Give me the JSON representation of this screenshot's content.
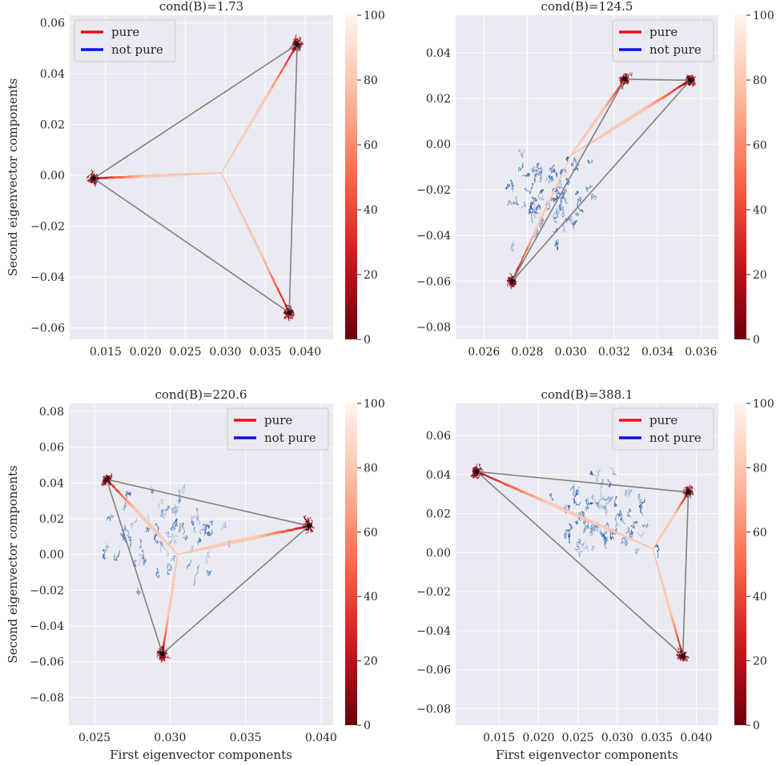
{
  "figure": {
    "legend_labels": {
      "pure": "pure",
      "not_pure": "not pure"
    },
    "colors": {
      "pure": "#ee1111",
      "not_pure": "#1010ee",
      "axes_bg": "#eaeaf2",
      "grid": "#ffffff",
      "triangle": "#808080"
    },
    "colormap": "Reds_r"
  },
  "chart_data": [
    {
      "type": "line",
      "title": "cond(B)=1.73",
      "xlabel": "",
      "ylabel": "Second eigenvector components",
      "xlim": [
        0.0105,
        0.0435
      ],
      "ylim": [
        -0.0645,
        0.063
      ],
      "xticks": [
        0.015,
        0.02,
        0.025,
        0.03,
        0.035,
        0.04
      ],
      "xtick_labels": [
        "0.015",
        "0.020",
        "0.025",
        "0.030",
        "0.035",
        "0.040"
      ],
      "yticks": [
        -0.06,
        -0.04,
        -0.02,
        0.0,
        0.02,
        0.04,
        0.06
      ],
      "ytick_labels": [
        "−0.06",
        "−0.04",
        "−0.02",
        "0.00",
        "0.02",
        "0.04",
        "0.06"
      ],
      "legend": [
        "pure",
        "not pure"
      ],
      "legend_position": "upper left",
      "colorbar": {
        "range": [
          0,
          100
        ],
        "ticks": [
          0,
          20,
          40,
          60,
          80,
          100
        ],
        "tick_labels": [
          "0",
          "20",
          "40",
          "60",
          "80",
          "100"
        ]
      },
      "vertices": [
        [
          0.0135,
          -0.0012
        ],
        [
          0.039,
          0.0515
        ],
        [
          0.038,
          -0.054
        ]
      ],
      "branch_center": [
        0.0295,
        0.001
      ],
      "blue_cloud": null
    },
    {
      "type": "line",
      "title": "cond(B)=124.5",
      "xlabel": "",
      "ylabel": "",
      "xlim": [
        0.0247,
        0.0368
      ],
      "ylim": [
        -0.0855,
        0.0565
      ],
      "xticks": [
        0.026,
        0.028,
        0.03,
        0.032,
        0.034,
        0.036
      ],
      "xtick_labels": [
        "0.026",
        "0.028",
        "0.030",
        "0.032",
        "0.034",
        "0.036"
      ],
      "yticks": [
        -0.08,
        -0.06,
        -0.04,
        -0.02,
        0.0,
        0.02,
        0.04
      ],
      "ytick_labels": [
        "−0.08",
        "−0.06",
        "−0.04",
        "−0.02",
        "0.00",
        "0.02",
        "0.04"
      ],
      "legend": [
        "pure",
        "not pure"
      ],
      "legend_position": "upper right",
      "colorbar": {
        "range": [
          0,
          100
        ],
        "ticks": [
          0,
          20,
          40,
          60,
          80,
          100
        ],
        "tick_labels": [
          "0",
          "20",
          "40",
          "60",
          "80",
          "100"
        ]
      },
      "vertices": [
        [
          0.0273,
          -0.06
        ],
        [
          0.0325,
          0.0285
        ],
        [
          0.0355,
          0.028
        ]
      ],
      "branch_center": [
        0.03,
        -0.005
      ],
      "blue_cloud": {
        "center": [
          0.029,
          -0.02
        ],
        "spread": [
          0.002,
          0.02
        ]
      }
    },
    {
      "type": "line",
      "title": "cond(B)=220.6",
      "xlabel": "First eigenvector components",
      "ylabel": "Second eigenvector components",
      "xlim": [
        0.0233,
        0.0408
      ],
      "ylim": [
        -0.0955,
        0.0845
      ],
      "xticks": [
        0.025,
        0.03,
        0.035,
        0.04
      ],
      "xtick_labels": [
        "0.025",
        "0.030",
        "0.035",
        "0.040"
      ],
      "yticks": [
        -0.08,
        -0.06,
        -0.04,
        -0.02,
        0.0,
        0.02,
        0.04,
        0.06,
        0.08
      ],
      "ytick_labels": [
        "−0.08",
        "−0.06",
        "−0.04",
        "−0.02",
        "0.00",
        "0.02",
        "0.04",
        "0.06",
        "0.08"
      ],
      "legend": [
        "pure",
        "not pure"
      ],
      "legend_position": "upper right",
      "colorbar": {
        "range": [
          0,
          100
        ],
        "ticks": [
          0,
          20,
          40,
          60,
          80,
          100
        ],
        "tick_labels": [
          "0",
          "20",
          "40",
          "60",
          "80",
          "100"
        ]
      },
      "vertices": [
        [
          0.0258,
          0.042
        ],
        [
          0.0392,
          0.016
        ],
        [
          0.0295,
          -0.0555
        ]
      ],
      "branch_center": [
        0.0305,
        0.0
      ],
      "blue_cloud": {
        "center": [
          0.0298,
          0.011
        ],
        "spread": [
          0.0035,
          0.026
        ]
      }
    },
    {
      "type": "line",
      "title": "cond(B)=388.1",
      "xlabel": "First eigenvector components",
      "ylabel": "",
      "xlim": [
        0.0095,
        0.0428
      ],
      "ylim": [
        -0.0885,
        0.0765
      ],
      "xticks": [
        0.015,
        0.02,
        0.025,
        0.03,
        0.035,
        0.04
      ],
      "xtick_labels": [
        "0.015",
        "0.020",
        "0.025",
        "0.030",
        "0.035",
        "0.040"
      ],
      "yticks": [
        -0.08,
        -0.06,
        -0.04,
        -0.02,
        0.0,
        0.02,
        0.04,
        0.06
      ],
      "ytick_labels": [
        "−0.08",
        "−0.06",
        "−0.04",
        "−0.02",
        "0.00",
        "0.02",
        "0.04",
        "0.06"
      ],
      "legend": [
        "pure",
        "not pure"
      ],
      "legend_position": "upper right",
      "colorbar": {
        "range": [
          0,
          100
        ],
        "ticks": [
          0,
          20,
          40,
          60,
          80,
          100
        ],
        "tick_labels": [
          "0",
          "20",
          "40",
          "60",
          "80",
          "100"
        ]
      },
      "vertices": [
        [
          0.0122,
          0.0415
        ],
        [
          0.039,
          0.031
        ],
        [
          0.0383,
          -0.053
        ]
      ],
      "branch_center": [
        0.0345,
        0.002
      ],
      "blue_cloud": {
        "center": [
          0.0285,
          0.02
        ],
        "spread": [
          0.007,
          0.02
        ]
      }
    }
  ]
}
